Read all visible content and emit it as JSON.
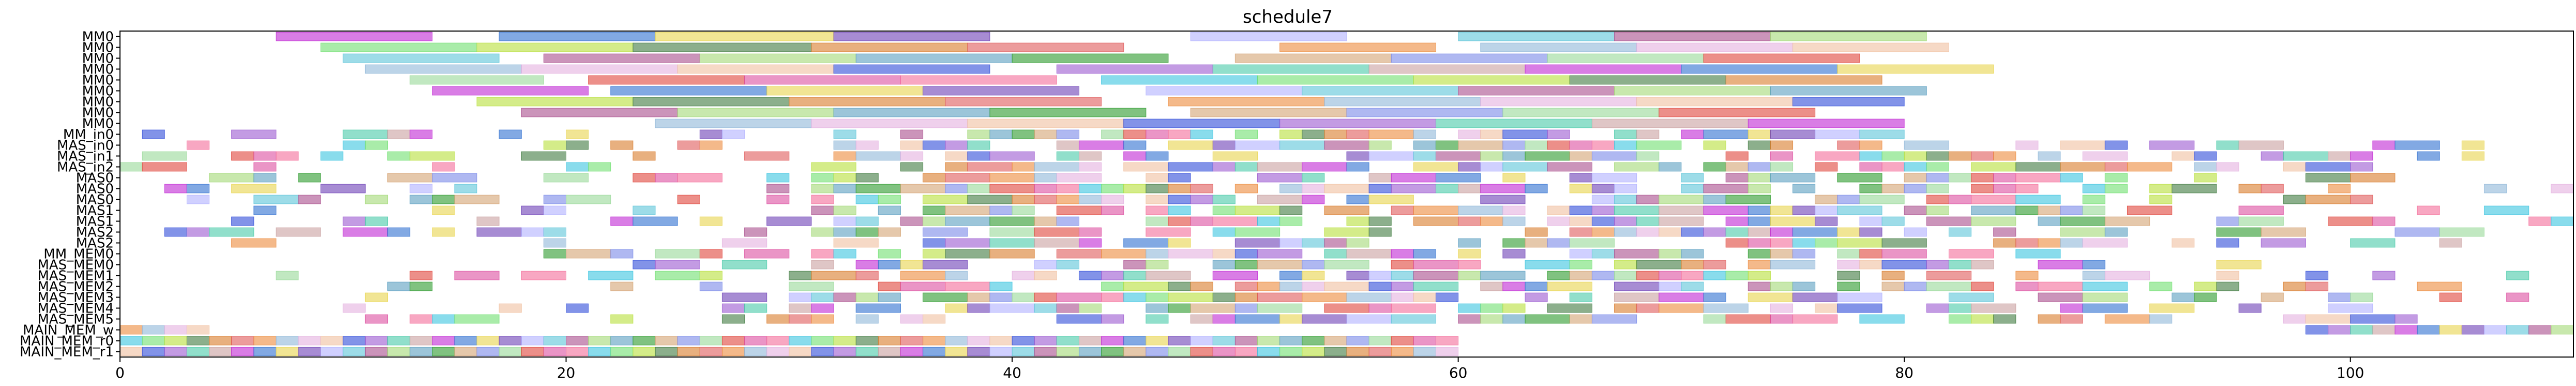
{
  "chart_data": {
    "type": "gantt",
    "title": "schedule7",
    "xlabel": "",
    "ylabel": "",
    "xlim": [
      0,
      110
    ],
    "xticks": [
      0,
      20,
      40,
      60,
      80,
      100
    ],
    "grid": false,
    "rows": [
      "MM0",
      "MM0",
      "MM0",
      "MM0",
      "MM0",
      "MM0",
      "MM0",
      "MM0",
      "MM0",
      "MM_in0",
      "MAS_in0",
      "MAS_in1",
      "MAS_in2",
      "MAS0",
      "MAS0",
      "MAS0",
      "MAS1",
      "MAS1",
      "MAS2",
      "MAS2",
      "MM_MEM0",
      "MAS_MEM0",
      "MAS_MEM1",
      "MAS_MEM2",
      "MAS_MEM3",
      "MAS_MEM4",
      "MAS_MEM5",
      "MAIN_MEM_w",
      "MAIN_MEM_r0",
      "MAIN_MEM_r1"
    ],
    "palette": [
      "#c026d3",
      "#e0443a",
      "#2e4bd9",
      "#2b9a2b",
      "#ec8a3c",
      "#5bc4d8",
      "#b8e03a",
      "#2e6fd0",
      "#dc4fa0",
      "#9b59d0",
      "#d4a373",
      "#8fb7d8",
      "#a94c8c",
      "#3f7a3f",
      "#e8d44d",
      "#f46d9a",
      "#47c9a8",
      "#7a89e8",
      "#e4b0e0",
      "#a3d977",
      "#d97b2a",
      "#6c3fb5",
      "#3ac4e0",
      "#c9a0a0",
      "#98d998",
      "#f0c0a0",
      "#5a9ec0",
      "#e05a5a",
      "#b0b0ff",
      "#70e070"
    ],
    "tasks": [
      {
        "row": 0,
        "start": 7,
        "end": 14
      },
      {
        "row": 0,
        "start": 17,
        "end": 24
      },
      {
        "row": 0,
        "start": 24,
        "end": 32
      },
      {
        "row": 0,
        "start": 32,
        "end": 39
      },
      {
        "row": 0,
        "start": 48,
        "end": 55
      },
      {
        "row": 0,
        "start": 60,
        "end": 67
      },
      {
        "row": 0,
        "start": 67,
        "end": 74
      },
      {
        "row": 0,
        "start": 74,
        "end": 81
      },
      {
        "row": 1,
        "start": 9,
        "end": 16
      },
      {
        "row": 1,
        "start": 16,
        "end": 23
      },
      {
        "row": 1,
        "start": 23,
        "end": 31
      },
      {
        "row": 1,
        "start": 31,
        "end": 38
      },
      {
        "row": 1,
        "start": 38,
        "end": 45
      },
      {
        "row": 1,
        "start": 52,
        "end": 59
      },
      {
        "row": 1,
        "start": 61,
        "end": 68
      },
      {
        "row": 1,
        "start": 68,
        "end": 75
      },
      {
        "row": 1,
        "start": 75,
        "end": 82
      },
      {
        "row": 2,
        "start": 10,
        "end": 17
      },
      {
        "row": 2,
        "start": 19,
        "end": 26
      },
      {
        "row": 2,
        "start": 26,
        "end": 33
      },
      {
        "row": 2,
        "start": 33,
        "end": 40
      },
      {
        "row": 2,
        "start": 40,
        "end": 47
      },
      {
        "row": 2,
        "start": 50,
        "end": 57
      },
      {
        "row": 2,
        "start": 57,
        "end": 64
      },
      {
        "row": 2,
        "start": 64,
        "end": 71
      },
      {
        "row": 2,
        "start": 71,
        "end": 78
      },
      {
        "row": 3,
        "start": 11,
        "end": 18
      },
      {
        "row": 3,
        "start": 18,
        "end": 25
      },
      {
        "row": 3,
        "start": 25,
        "end": 32
      },
      {
        "row": 3,
        "start": 32,
        "end": 39
      },
      {
        "row": 3,
        "start": 42,
        "end": 49
      },
      {
        "row": 3,
        "start": 49,
        "end": 56
      },
      {
        "row": 3,
        "start": 56,
        "end": 63
      },
      {
        "row": 3,
        "start": 63,
        "end": 70
      },
      {
        "row": 3,
        "start": 70,
        "end": 77
      },
      {
        "row": 3,
        "start": 77,
        "end": 84
      },
      {
        "row": 4,
        "start": 13,
        "end": 19
      },
      {
        "row": 4,
        "start": 21,
        "end": 28
      },
      {
        "row": 4,
        "start": 28,
        "end": 35
      },
      {
        "row": 4,
        "start": 35,
        "end": 42
      },
      {
        "row": 4,
        "start": 44,
        "end": 51
      },
      {
        "row": 4,
        "start": 51,
        "end": 58
      },
      {
        "row": 4,
        "start": 58,
        "end": 65
      },
      {
        "row": 4,
        "start": 65,
        "end": 72
      },
      {
        "row": 4,
        "start": 72,
        "end": 79
      },
      {
        "row": 5,
        "start": 14,
        "end": 21
      },
      {
        "row": 5,
        "start": 22,
        "end": 29
      },
      {
        "row": 5,
        "start": 29,
        "end": 36
      },
      {
        "row": 5,
        "start": 36,
        "end": 43
      },
      {
        "row": 5,
        "start": 46,
        "end": 53
      },
      {
        "row": 5,
        "start": 53,
        "end": 60
      },
      {
        "row": 5,
        "start": 60,
        "end": 67
      },
      {
        "row": 5,
        "start": 67,
        "end": 74
      },
      {
        "row": 5,
        "start": 74,
        "end": 81
      },
      {
        "row": 6,
        "start": 16,
        "end": 23
      },
      {
        "row": 6,
        "start": 23,
        "end": 30
      },
      {
        "row": 6,
        "start": 30,
        "end": 37
      },
      {
        "row": 6,
        "start": 37,
        "end": 44
      },
      {
        "row": 6,
        "start": 47,
        "end": 54
      },
      {
        "row": 6,
        "start": 54,
        "end": 61
      },
      {
        "row": 6,
        "start": 61,
        "end": 68
      },
      {
        "row": 6,
        "start": 68,
        "end": 75
      },
      {
        "row": 6,
        "start": 75,
        "end": 80
      },
      {
        "row": 7,
        "start": 18,
        "end": 25
      },
      {
        "row": 7,
        "start": 25,
        "end": 32
      },
      {
        "row": 7,
        "start": 32,
        "end": 39
      },
      {
        "row": 7,
        "start": 39,
        "end": 46
      },
      {
        "row": 7,
        "start": 48,
        "end": 55
      },
      {
        "row": 7,
        "start": 55,
        "end": 62
      },
      {
        "row": 7,
        "start": 62,
        "end": 69
      },
      {
        "row": 7,
        "start": 69,
        "end": 76
      },
      {
        "row": 8,
        "start": 24,
        "end": 31
      },
      {
        "row": 8,
        "start": 31,
        "end": 38
      },
      {
        "row": 8,
        "start": 38,
        "end": 45
      },
      {
        "row": 8,
        "start": 45,
        "end": 52
      },
      {
        "row": 8,
        "start": 52,
        "end": 59
      },
      {
        "row": 8,
        "start": 59,
        "end": 66
      },
      {
        "row": 8,
        "start": 66,
        "end": 73
      },
      {
        "row": 8,
        "start": 73,
        "end": 80
      },
      {
        "row": 27,
        "start": 0,
        "end": 1
      },
      {
        "row": 27,
        "start": 1,
        "end": 2
      },
      {
        "row": 27,
        "start": 2,
        "end": 3
      },
      {
        "row": 27,
        "start": 3,
        "end": 4
      },
      {
        "row": 27,
        "start": 98,
        "end": 99
      },
      {
        "row": 27,
        "start": 99,
        "end": 100
      },
      {
        "row": 27,
        "start": 100,
        "end": 101
      },
      {
        "row": 27,
        "start": 101,
        "end": 102
      },
      {
        "row": 27,
        "start": 102,
        "end": 103
      },
      {
        "row": 27,
        "start": 103,
        "end": 104
      },
      {
        "row": 27,
        "start": 104,
        "end": 105
      },
      {
        "row": 27,
        "start": 105,
        "end": 106
      },
      {
        "row": 27,
        "start": 106,
        "end": 107
      },
      {
        "row": 27,
        "start": 107,
        "end": 108
      },
      {
        "row": 27,
        "start": 108,
        "end": 109
      },
      {
        "row": 27,
        "start": 109,
        "end": 110
      }
    ]
  }
}
